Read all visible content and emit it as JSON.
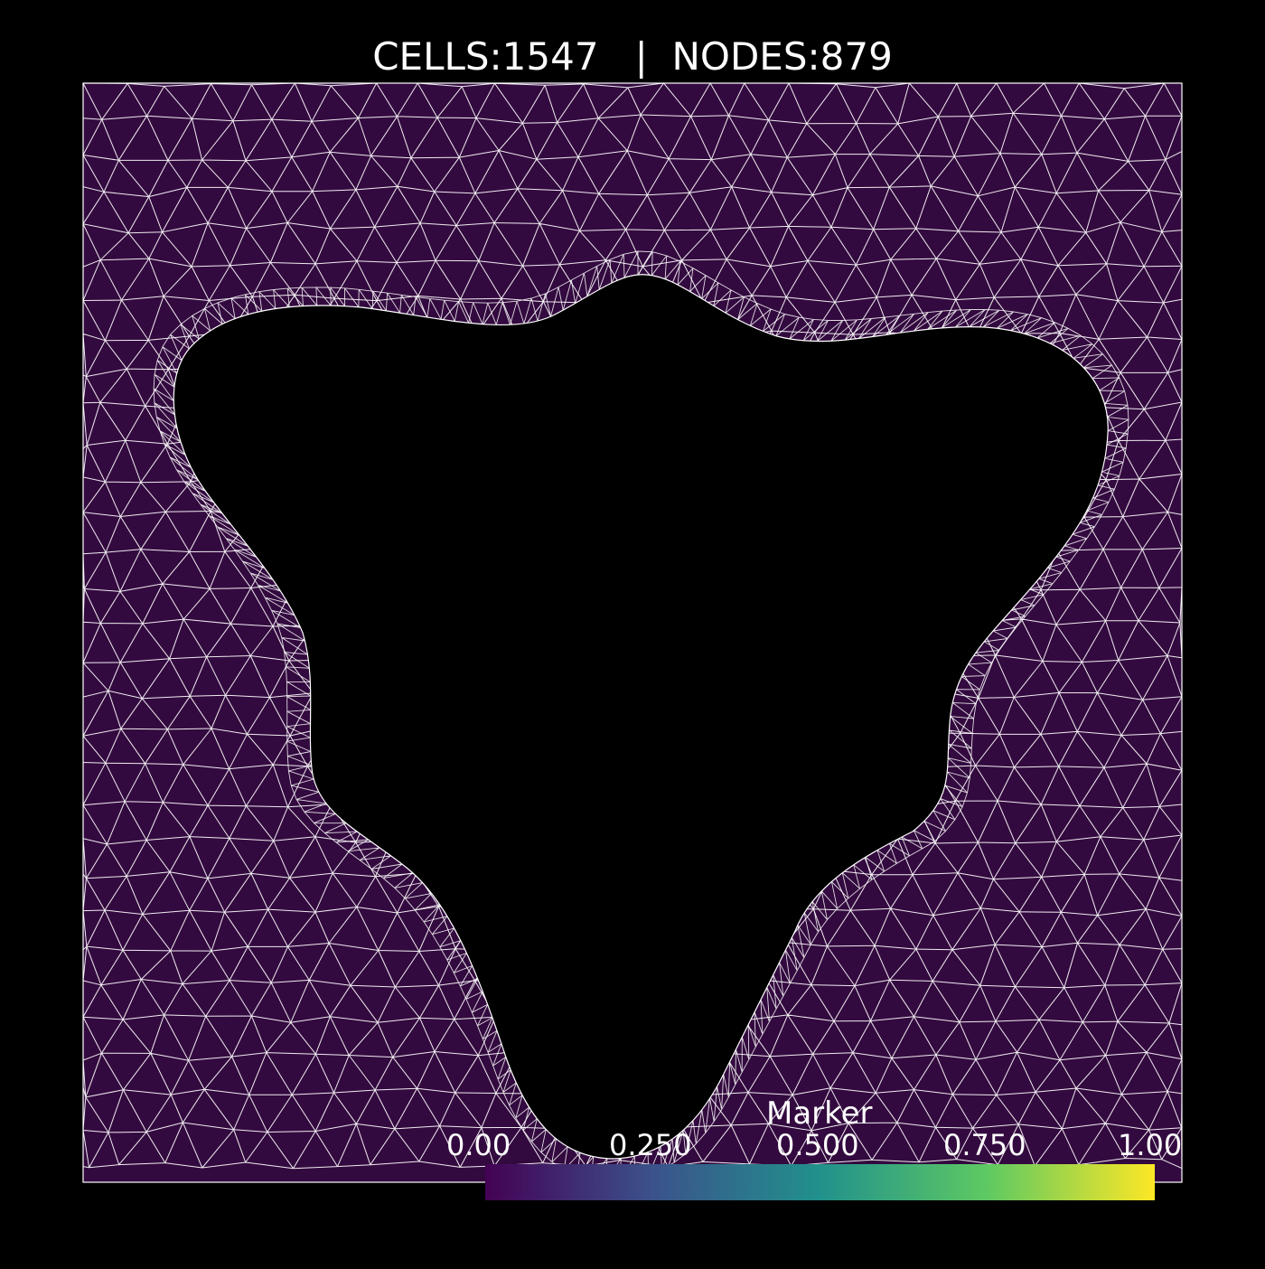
{
  "header": {
    "title": "CELLS:1547   |  NODES:879"
  },
  "mesh": {
    "cells": 1547,
    "nodes": 879,
    "fill_color": "#330a3f",
    "edge_color": "#ffffff",
    "background_color": "#000000",
    "hole_lobes": 3,
    "hole_shape": "three-lobed domain with smooth sinusoidal boundary"
  },
  "colorbar": {
    "title": "Marker",
    "ticks": [
      "0.00",
      "0.250",
      "0.500",
      "0.750",
      "1.00"
    ],
    "range": [
      0,
      1
    ],
    "colormap": "viridis",
    "stops": [
      "#440154",
      "#3b528b",
      "#21918c",
      "#5ec962",
      "#fde725"
    ]
  }
}
